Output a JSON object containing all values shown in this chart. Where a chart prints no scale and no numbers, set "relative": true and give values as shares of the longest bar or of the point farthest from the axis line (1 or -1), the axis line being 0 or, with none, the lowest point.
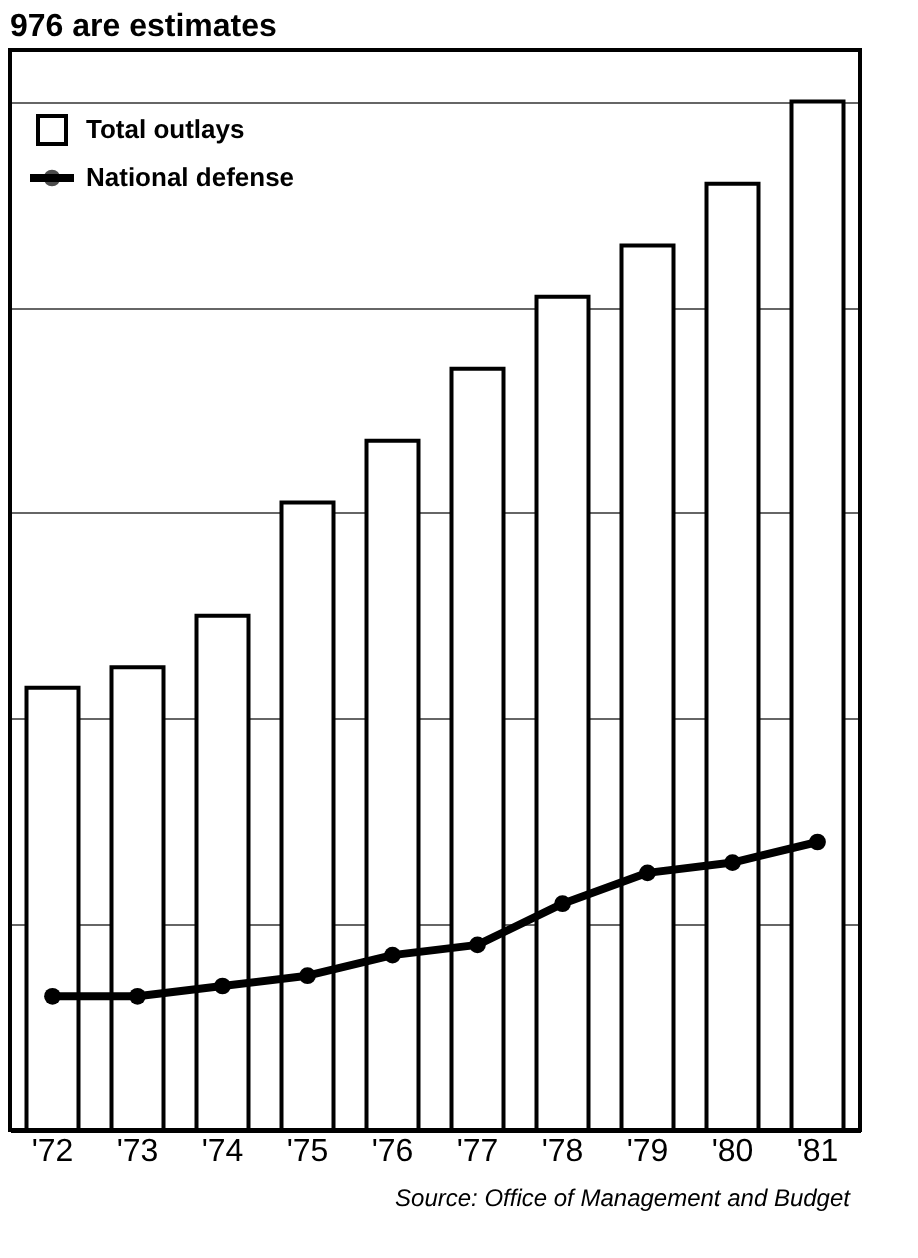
{
  "chart_data": {
    "type": "bar",
    "title": "976 are estimates",
    "categories": [
      "'72",
      "'73",
      "'74",
      "'75",
      "'76",
      "'77",
      "'78",
      "'79",
      "'80",
      "'81"
    ],
    "relative": true,
    "series": [
      {
        "name": "Total outlays",
        "color": "#ffffff",
        "values": [
          0.43,
          0.45,
          0.5,
          0.61,
          0.67,
          0.74,
          0.81,
          0.86,
          0.92,
          1.0
        ]
      },
      {
        "name": "National defense",
        "type": "line",
        "color": "#000000",
        "values": [
          0.13,
          0.13,
          0.14,
          0.15,
          0.17,
          0.18,
          0.22,
          0.25,
          0.26,
          0.28
        ]
      }
    ],
    "marker": "circle",
    "grid": "y",
    "legend": "top left",
    "annotations": [
      "Source: Office of Management and Budget"
    ]
  }
}
